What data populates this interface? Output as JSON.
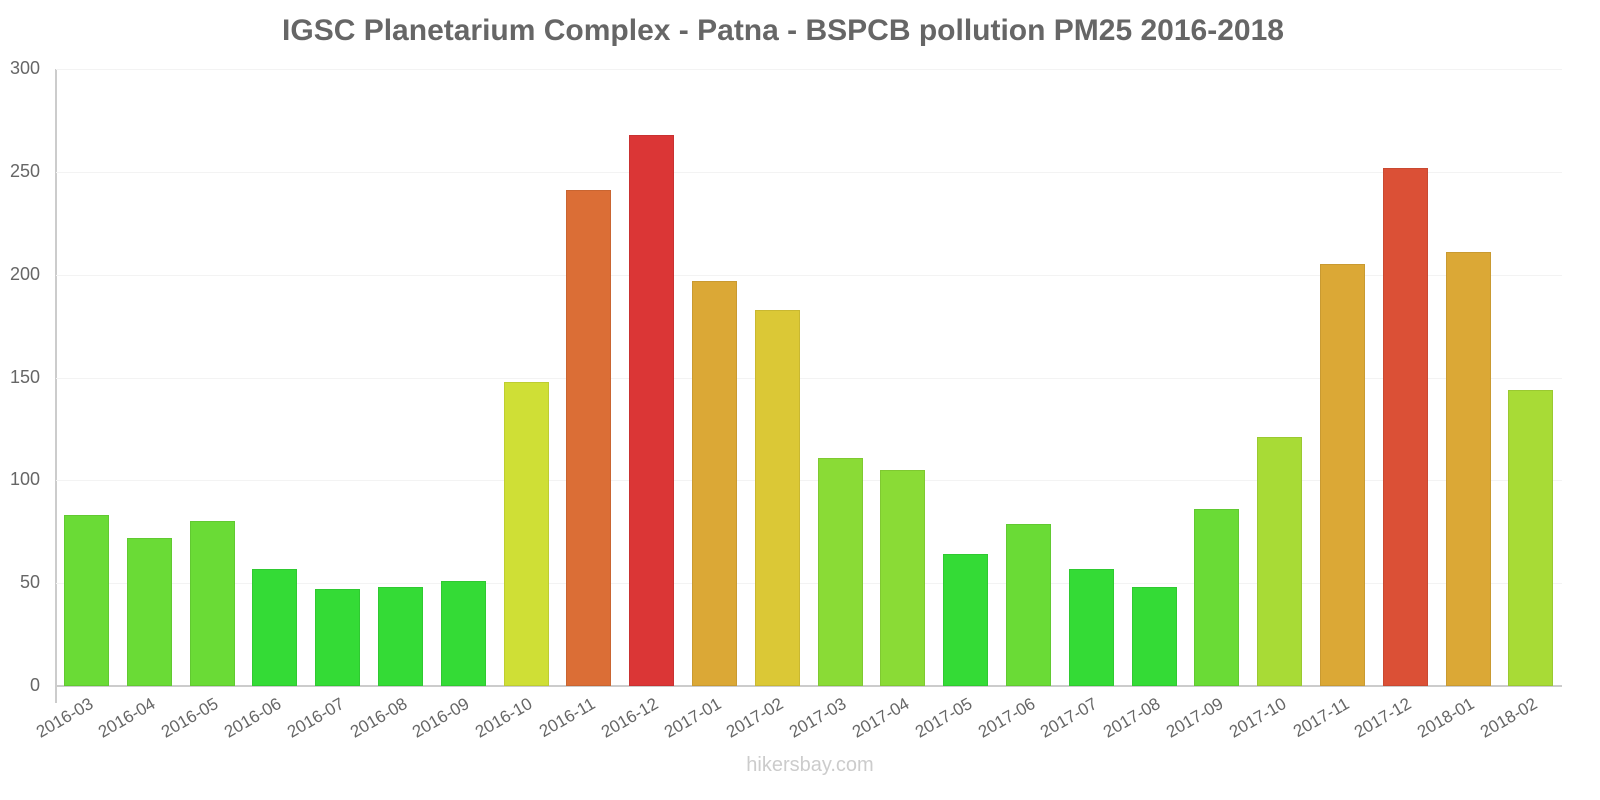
{
  "chart_data": {
    "type": "bar",
    "title": "IGSC Planetarium Complex - Patna - BSPCB pollution PM25 2016-2018",
    "xlabel": "",
    "ylabel": "",
    "ylim": [
      0,
      300
    ],
    "yticks": [
      0,
      50,
      100,
      150,
      200,
      250,
      300
    ],
    "grid": true,
    "legend": null,
    "categories": [
      "2016-03",
      "2016-04",
      "2016-05",
      "2016-06",
      "2016-07",
      "2016-08",
      "2016-09",
      "2016-10",
      "2016-11",
      "2016-12",
      "2017-01",
      "2017-02",
      "2017-03",
      "2017-04",
      "2017-05",
      "2017-06",
      "2017-07",
      "2017-08",
      "2017-09",
      "2017-10",
      "2017-11",
      "2017-12",
      "2018-01",
      "2018-02"
    ],
    "values": [
      83,
      72,
      80,
      57,
      47,
      48,
      51,
      148,
      241,
      268,
      197,
      183,
      111,
      105,
      64,
      79,
      57,
      48,
      86,
      121,
      205,
      252,
      211,
      144
    ],
    "colors": [
      "#6adb36",
      "#6adb36",
      "#6adb36",
      "#34db36",
      "#34db36",
      "#34db36",
      "#34db36",
      "#cfdf36",
      "#db6e36",
      "#db3636",
      "#dba836",
      "#dbc836",
      "#8adb36",
      "#8adb36",
      "#34db36",
      "#6adb36",
      "#34db36",
      "#34db36",
      "#6adb36",
      "#a8db36",
      "#dba836",
      "#db5036",
      "#dba836",
      "#a8db36"
    ]
  },
  "watermark": "hikersbay.com"
}
